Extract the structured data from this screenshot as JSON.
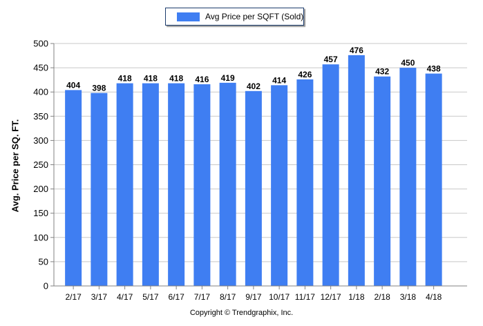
{
  "chart_data": {
    "type": "bar",
    "categories": [
      "2/17",
      "3/17",
      "4/17",
      "5/17",
      "6/17",
      "7/17",
      "8/17",
      "9/17",
      "10/17",
      "11/17",
      "12/17",
      "1/18",
      "2/18",
      "3/18",
      "4/18"
    ],
    "series": [
      {
        "name": "Avg Price per SQFT (Sold)",
        "values": [
          404,
          398,
          418,
          418,
          418,
          416,
          419,
          402,
          414,
          426,
          457,
          476,
          432,
          450,
          438
        ],
        "color": "#3f7ef2"
      }
    ],
    "ylabel": "Avg. Price per SQ. FT.",
    "xlabel": "",
    "ylim": [
      0,
      500
    ],
    "yticks": [
      0,
      50,
      100,
      150,
      200,
      250,
      300,
      350,
      400,
      450,
      500
    ],
    "grid": true,
    "legend": "top-center",
    "data_labels": true
  },
  "footer": {
    "copyright": "Copyright © Trendgraphix, Inc."
  },
  "colors": {
    "bar": "#3f7ef2",
    "grid": "#c8c8c8",
    "axis": "#808080"
  }
}
